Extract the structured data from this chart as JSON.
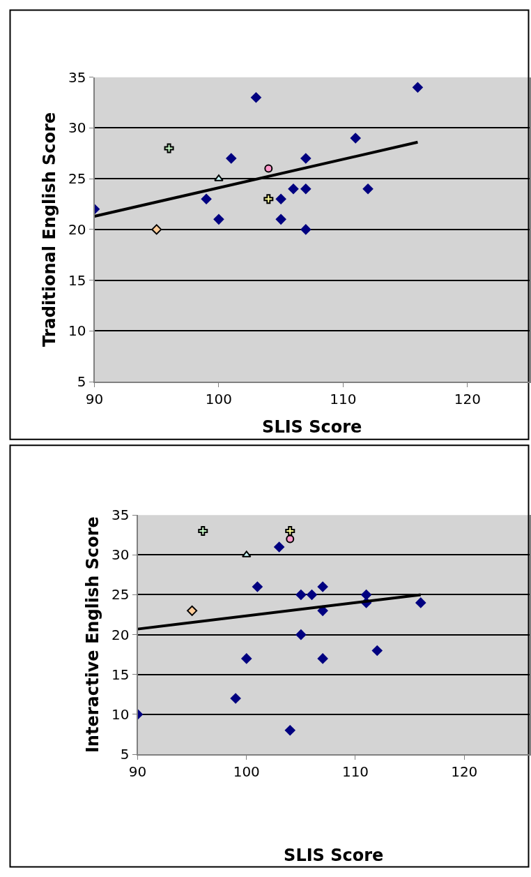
{
  "chart_data": [
    {
      "type": "scatter",
      "xlabel": "SLIS Score",
      "ylabel": "Traditional English Score",
      "xlim": [
        90,
        125
      ],
      "ylim": [
        5,
        35
      ],
      "xticks": [
        90,
        100,
        110,
        120
      ],
      "yticks": [
        5,
        10,
        15,
        20,
        25,
        30,
        35
      ],
      "grid": "y",
      "series": [
        {
          "color": "#000080",
          "marker": "diamond",
          "x": [
            90,
            99,
            100,
            101,
            103,
            105,
            105,
            106,
            107,
            107,
            107,
            111,
            112,
            116
          ],
          "values": [
            22,
            23,
            21,
            27,
            33,
            23,
            21,
            24,
            27,
            24,
            20,
            29,
            24,
            34
          ]
        },
        {
          "color": "#ffcc99",
          "marker": "diamond",
          "x": [
            95
          ],
          "values": [
            20
          ]
        },
        {
          "color": "#ccffcc",
          "marker": "cross",
          "x": [
            96
          ],
          "values": [
            28
          ]
        },
        {
          "color": "#ccffff",
          "marker": "triangle",
          "x": [
            100
          ],
          "values": [
            25
          ]
        },
        {
          "color": "#ff99cc",
          "marker": "circle",
          "x": [
            104
          ],
          "values": [
            26
          ]
        },
        {
          "color": "#ffff99",
          "marker": "cross",
          "x": [
            104
          ],
          "values": [
            23
          ]
        },
        {
          "type": "line",
          "color": "#000000",
          "marker": "none",
          "x": [
            90,
            116
          ],
          "values": [
            21.3,
            28.6
          ]
        }
      ]
    },
    {
      "type": "scatter",
      "xlabel": "SLIS Score",
      "ylabel": "Interactive English Score",
      "xlim": [
        90,
        126
      ],
      "ylim": [
        5,
        35
      ],
      "xticks": [
        90,
        100,
        110,
        120
      ],
      "yticks": [
        5,
        10,
        15,
        20,
        25,
        30,
        35
      ],
      "grid": "y",
      "series": [
        {
          "color": "#000080",
          "marker": "diamond",
          "x": [
            90,
            99,
            100,
            101,
            103,
            104,
            105,
            105,
            106,
            107,
            107,
            107,
            111,
            111,
            112,
            116
          ],
          "values": [
            10,
            12,
            17,
            26,
            31,
            8,
            25,
            20,
            25,
            26,
            23,
            17,
            25,
            24,
            18,
            24
          ]
        },
        {
          "color": "#ffcc99",
          "marker": "diamond",
          "x": [
            95
          ],
          "values": [
            23
          ]
        },
        {
          "color": "#ccffcc",
          "marker": "cross",
          "x": [
            96
          ],
          "values": [
            33
          ]
        },
        {
          "color": "#ccffff",
          "marker": "triangle",
          "x": [
            100
          ],
          "values": [
            30
          ]
        },
        {
          "color": "#ff99cc",
          "marker": "circle",
          "x": [
            104
          ],
          "values": [
            32
          ]
        },
        {
          "color": "#ffff99",
          "marker": "cross",
          "x": [
            104
          ],
          "values": [
            33
          ]
        },
        {
          "type": "line",
          "color": "#000000",
          "marker": "none",
          "x": [
            90,
            116
          ],
          "values": [
            20.7,
            25.0
          ]
        }
      ]
    }
  ]
}
